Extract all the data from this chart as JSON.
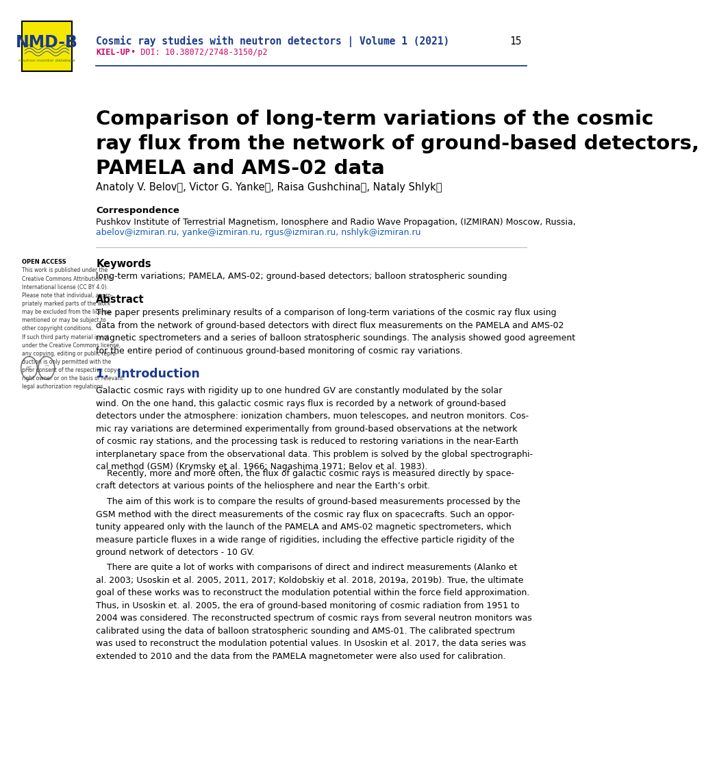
{
  "page_width": 10.2,
  "page_height": 14.42,
  "background_color": "#ffffff",
  "header": {
    "journal_text": "Cosmic ray studies with neutron detectors | Volume 1 (2021)",
    "journal_color": "#1a3a8c",
    "kielup_text": "KIEL-UP",
    "kielup_color": "#cc0066",
    "doi_text": " • DOI: 10.38072/2748-3150/p2",
    "doi_color": "#cc0066",
    "page_number": "15",
    "page_number_color": "#000000",
    "line_color": "#1a3a8c",
    "logo_box_color": "#ffff00",
    "logo_border_color": "#000000"
  },
  "title": "Comparison of long-term variations of the cosmic\nray flux from the network of ground-based detectors,\nPAMELA and AMS-02 data",
  "title_color": "#000000",
  "title_fontsize": 22,
  "authors": "Anatoly V. Belovⓘ, Victor G. Yankeⓘ, Raisa Gushchinaⓘ, Nataly Shlykⓘ",
  "authors_color": "#000000",
  "authors_fontsize": 11,
  "correspondence_label": "Correspondence",
  "correspondence_text": "Pushkov Institute of Terrestrial Magnetism, Ionosphere and Radio Wave Propagation, (IZMIRAN) Moscow, Russia,",
  "correspondence_emails": "abelov@izmiran.ru, yanke@izmiran.ru, rgus@izmiran.ru, nshlyk@izmiran.ru",
  "correspondence_color": "#000000",
  "emails_color": "#1a5cb5",
  "open_access_label": "OPEN ACCESS",
  "open_access_text": "This work is published under the\nCreative Commons Attribution 4.0\nInternational license (CC BY 4.0).\nPlease note that individual, appro-\npriately marked parts of the work\nmay be excluded from the license\nmentioned or may be subject to\nother copyright conditions.\nIf such third party material is not\nunder the Creative Commons license,\nany copying, editing or public repro-\nduction is only permitted with the\nprior consent of the respective copy-\nright owner or on the basis of relevant\nlegal authorization regulations.",
  "keywords_label": "Keywords",
  "keywords_text": "long-term variations; PAMELA, AMS-02; ground-based detectors; balloon stratospheric sounding",
  "abstract_label": "Abstract",
  "abstract_text": "The paper presents preliminary results of a comparison of long-term variations of the cosmic ray flux using\ndata from the network of ground-based detectors with direct flux measurements on the PAMELA and AMS-02\nmagnetic spectrometers and a series of balloon stratospheric soundings. The analysis showed good agreement\nfor the entire period of continuous ground-based monitoring of cosmic ray variations.",
  "section1_label": "1.  Introduction",
  "section1_color": "#1a3a8c",
  "intro_p1": "Galactic cosmic rays with rigidity up to one hundred GV are constantly modulated by the solar\nwind. On the one hand, this galactic cosmic rays flux is recorded by a network of ground-based\ndetectors under the atmosphere: ionization chambers, muon telescopes, and neutron monitors. Cos-\nmic ray variations are determined experimentally from ground-based observations at the network\nof cosmic ray stations, and the processing task is reduced to restoring variations in the near-Earth\ninterplanetary space from the observational data. This problem is solved by the global spectrographi-\ncal method (GSM) (Krymsky et al. 1966; Nagashima 1971; Belov et al. 1983).",
  "intro_p2": "    Recently, more and more often, the flux of galactic cosmic rays is measured directly by space-\ncraft detectors at various points of the heliosphere and near the Earth’s orbit.",
  "intro_p3": "    The aim of this work is to compare the results of ground-based measurements processed by the\nGSM method with the direct measurements of the cosmic ray flux on spacecrafts. Such an oppor-\ntunity appeared only with the launch of the PAMELA and AMS-02 magnetic spectrometers, which\nmeasure particle fluxes in a wide range of rigidities, including the effective particle rigidity of the\nground network of detectors - 10 GV.",
  "intro_p4": "    There are quite a lot of works with comparisons of direct and indirect measurements (Alanko et\nal. 2003; Usoskin et al. 2005, 2011, 2017; Koldobskiy et al. 2018, 2019a, 2019b). True, the ultimate\ngoal of these works was to reconstruct the modulation potential within the force field approximation.\nThus, in Usoskin et. al. 2005, the era of ground-based monitoring of cosmic radiation from 1951 to\n2004 was considered. The reconstructed spectrum of cosmic rays from several neutron monitors was\ncalibrated using the data of balloon stratospheric sounding and AMS-01. The calibrated spectrum\nwas used to reconstruct the modulation potential values. In Usoskin et al. 2017, the data series was\nextended to 2010 and the data from the PAMELA magnetometer were also used for calibration."
}
